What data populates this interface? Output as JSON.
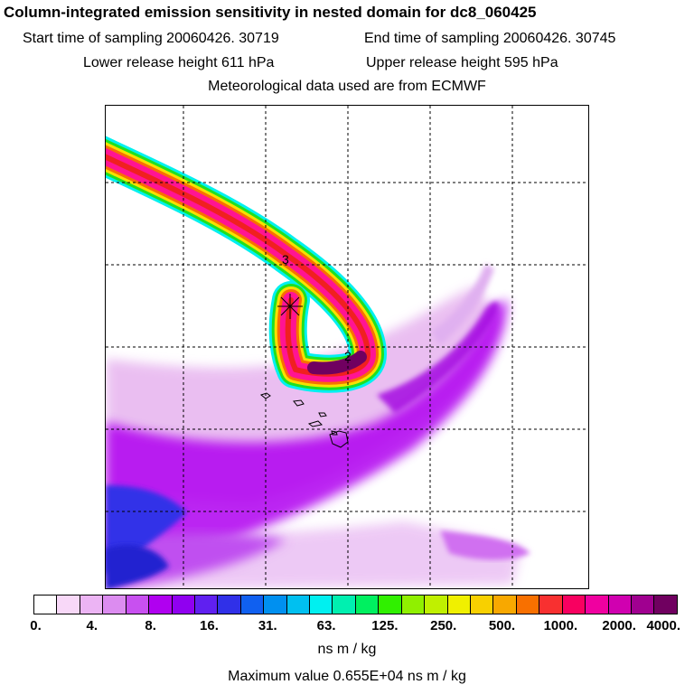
{
  "header": {
    "title": "Column-integrated emission sensitivity in nested domain for dc8_060425",
    "start": "Start time of sampling 20060426. 30719",
    "end": "End time of sampling 20060426. 30745",
    "lower": "Lower release height  611 hPa",
    "upper": "Upper release height  595 hPa",
    "met": "Meteorological data used are from ECMWF"
  },
  "map": {
    "contour_labels": [
      "3",
      "2"
    ],
    "colors": {
      "light_purple": "#e8b8f0",
      "magenta": "#b000f0",
      "blue": "#3030e8",
      "pink": "#ff1493",
      "red": "#f02020",
      "yellow": "#f8e000",
      "green": "#20e020",
      "cyan": "#00f0f0",
      "dark_purple": "#700060"
    }
  },
  "colorbar": {
    "colors": [
      "#ffffff",
      "#f8d8f8",
      "#ecb4f4",
      "#dc8cf0",
      "#c850f0",
      "#b000f0",
      "#9000f0",
      "#6020f0",
      "#3030e8",
      "#1060f0",
      "#0090f0",
      "#00c0f0",
      "#00f0f0",
      "#00f0b0",
      "#00f060",
      "#30f000",
      "#90f000",
      "#c0f000",
      "#f0f000",
      "#f8d000",
      "#f8a800",
      "#f87000",
      "#f83030",
      "#f80060",
      "#f000a0",
      "#d000b0",
      "#a00090",
      "#700060"
    ],
    "ticks": [
      "0.",
      "4.",
      "8.",
      "16.",
      "31.",
      "63.",
      "125.",
      "250.",
      "500.",
      "1000.",
      "2000.",
      "4000."
    ],
    "units": "ns m / kg"
  },
  "footer": {
    "max_value": "Maximum value  0.655E+04 ns m / kg"
  }
}
